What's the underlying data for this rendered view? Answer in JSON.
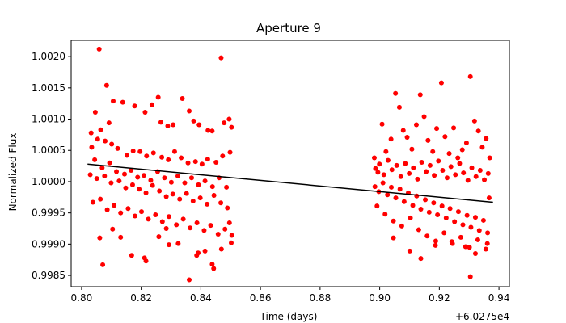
{
  "chart_data": {
    "type": "scatter",
    "title": "Aperture 9",
    "xlabel": "Time (days)",
    "ylabel": "Normalized Flux",
    "x_offset_label": "+6.0275e4",
    "xlim": [
      0.7965,
      0.9435
    ],
    "ylim": [
      0.99832,
      1.00226
    ],
    "xticks": [
      0.8,
      0.82,
      0.84,
      0.86,
      0.88,
      0.9,
      0.92,
      0.94
    ],
    "xtick_labels": [
      "0.80",
      "0.82",
      "0.84",
      "0.86",
      "0.88",
      "0.90",
      "0.92",
      "0.94"
    ],
    "yticks": [
      0.9985,
      0.999,
      0.9995,
      1.0,
      1.0005,
      1.001,
      1.0015,
      1.002
    ],
    "ytick_labels": [
      "0.9985",
      "0.9990",
      "0.9995",
      "1.0000",
      "1.0005",
      "1.0010",
      "1.0015",
      "1.0020"
    ],
    "grid": false,
    "colors": {
      "points": "#ff0000",
      "fit": "#000000",
      "axes": "#000000",
      "background": "#ffffff"
    },
    "fit_line": {
      "x": [
        0.802,
        0.938
      ],
      "y": [
        1.00028,
        0.99967
      ]
    },
    "series": [
      {
        "points": [
          [
            0.8034,
            1.00055
          ],
          [
            0.8059,
            1.00212
          ],
          [
            0.8084,
            1.00154
          ],
          [
            0.8106,
            1.00129
          ],
          [
            0.8046,
            1.00111
          ],
          [
            0.8064,
            1.00083
          ],
          [
            0.8092,
            1.00094
          ],
          [
            0.8138,
            1.00127
          ],
          [
            0.8178,
            1.00121
          ],
          [
            0.8213,
            1.00111
          ],
          [
            0.8236,
            1.00123
          ],
          [
            0.8257,
            1.00135
          ],
          [
            0.8266,
            1.00095
          ],
          [
            0.8289,
            1.00089
          ],
          [
            0.8307,
            1.00091
          ],
          [
            0.8338,
            1.00133
          ],
          [
            0.8361,
            1.00113
          ],
          [
            0.8376,
            1.00097
          ],
          [
            0.8394,
            1.00091
          ],
          [
            0.8424,
            1.00082
          ],
          [
            0.8438,
            1.00081
          ],
          [
            0.8468,
            1.00198
          ],
          [
            0.8478,
            1.00094
          ],
          [
            0.8495,
            1.001
          ],
          [
            0.8503,
            1.00087
          ],
          [
            0.8032,
            1.00078
          ],
          [
            0.8054,
            1.00068
          ],
          [
            0.8079,
            1.00065
          ],
          [
            0.8101,
            1.0006
          ],
          [
            0.8121,
            1.00053
          ],
          [
            0.8152,
            1.00042
          ],
          [
            0.8173,
            1.00049
          ],
          [
            0.8196,
            1.00048
          ],
          [
            0.8218,
            1.00041
          ],
          [
            0.8241,
            1.00046
          ],
          [
            0.8269,
            1.00039
          ],
          [
            0.8291,
            1.00035
          ],
          [
            0.8312,
            1.00048
          ],
          [
            0.8334,
            1.00038
          ],
          [
            0.8357,
            1.0003
          ],
          [
            0.8382,
            1.00032
          ],
          [
            0.8404,
            1.00028
          ],
          [
            0.8423,
            1.00036
          ],
          [
            0.8451,
            1.00031
          ],
          [
            0.8473,
            1.00041
          ],
          [
            0.8498,
            1.00047
          ],
          [
            0.8044,
            1.00035
          ],
          [
            0.8069,
            1.00022
          ],
          [
            0.8094,
            1.0003
          ],
          [
            0.8117,
            1.00016
          ],
          [
            0.8144,
            1.00012
          ],
          [
            0.8166,
            1.00018
          ],
          [
            0.8188,
            1.00007
          ],
          [
            0.8209,
            1.0001
          ],
          [
            0.8232,
            1.00002
          ],
          [
            0.8255,
            1.00016
          ],
          [
            0.8278,
            1.00006
          ],
          [
            0.8301,
            0.99999
          ],
          [
            0.8323,
            1.00009
          ],
          [
            0.8346,
            0.99998
          ],
          [
            0.8369,
            1.00006
          ],
          [
            0.8392,
            0.99995
          ],
          [
            0.8414,
            1.00001
          ],
          [
            0.8439,
            0.99992
          ],
          [
            0.8461,
            1.00006
          ],
          [
            0.8486,
            0.99991
          ],
          [
            0.8029,
            1.00011
          ],
          [
            0.8051,
            1.00005
          ],
          [
            0.8077,
            1.00009
          ],
          [
            0.8099,
            0.99998
          ],
          [
            0.8126,
            1.00001
          ],
          [
            0.8148,
            0.9999
          ],
          [
            0.8171,
            0.99995
          ],
          [
            0.8193,
            0.99988
          ],
          [
            0.8216,
            0.99982
          ],
          [
            0.8238,
            0.99994
          ],
          [
            0.8261,
            0.99985
          ],
          [
            0.8284,
            0.99976
          ],
          [
            0.8306,
            0.9998
          ],
          [
            0.8329,
            0.99972
          ],
          [
            0.8352,
            0.99981
          ],
          [
            0.8374,
            0.99969
          ],
          [
            0.8398,
            0.99974
          ],
          [
            0.8421,
            0.99964
          ],
          [
            0.8444,
            0.99978
          ],
          [
            0.8467,
            0.99966
          ],
          [
            0.8489,
            0.99958
          ],
          [
            0.8038,
            0.99967
          ],
          [
            0.8063,
            0.99972
          ],
          [
            0.8086,
            0.99955
          ],
          [
            0.8109,
            0.99962
          ],
          [
            0.8131,
            0.9995
          ],
          [
            0.8156,
            0.99957
          ],
          [
            0.8179,
            0.99945
          ],
          [
            0.8201,
            0.99952
          ],
          [
            0.8224,
            0.9994
          ],
          [
            0.8248,
            0.99947
          ],
          [
            0.8271,
            0.99936
          ],
          [
            0.8293,
            0.99944
          ],
          [
            0.8318,
            0.99931
          ],
          [
            0.8341,
            0.9994
          ],
          [
            0.8364,
            0.99926
          ],
          [
            0.8387,
            0.99934
          ],
          [
            0.8411,
            0.99922
          ],
          [
            0.8433,
            0.9993
          ],
          [
            0.8458,
            0.99916
          ],
          [
            0.8481,
            0.99924
          ],
          [
            0.8504,
            0.99914
          ],
          [
            0.8061,
            0.9991
          ],
          [
            0.8104,
            0.99924
          ],
          [
            0.8168,
            0.99882
          ],
          [
            0.8211,
            0.99878
          ],
          [
            0.8259,
            0.99912
          ],
          [
            0.8293,
            0.99899
          ],
          [
            0.8324,
            0.99901
          ],
          [
            0.8361,
            0.99843
          ],
          [
            0.8386,
            0.99882
          ],
          [
            0.8414,
            0.99889
          ],
          [
            0.8438,
            0.99868
          ],
          [
            0.8469,
            0.99892
          ],
          [
            0.8502,
            0.99902
          ],
          [
            0.8071,
            0.99867
          ],
          [
            0.8216,
            0.99873
          ],
          [
            0.8391,
            0.99886
          ],
          [
            0.8443,
            0.99861
          ],
          [
            0.8496,
            0.99934
          ],
          [
            0.8131,
            0.99911
          ],
          [
            0.8284,
            0.99925
          ],
          [
            0.8982,
            1.00038
          ],
          [
            0.8994,
            1.00015
          ],
          [
            0.9008,
            1.00092
          ],
          [
            0.9021,
            1.00048
          ],
          [
            0.9038,
            1.00068
          ],
          [
            0.9053,
            1.00141
          ],
          [
            0.9066,
            1.00119
          ],
          [
            0.9079,
            1.00082
          ],
          [
            0.9092,
            1.00071
          ],
          [
            0.9108,
            1.00052
          ],
          [
            0.9123,
            1.00091
          ],
          [
            0.9136,
            1.00139
          ],
          [
            0.9149,
            1.00104
          ],
          [
            0.9162,
            1.00066
          ],
          [
            0.9178,
            1.00048
          ],
          [
            0.9191,
            1.00085
          ],
          [
            0.9207,
            1.00158
          ],
          [
            0.9219,
            1.00072
          ],
          [
            0.9233,
            1.00045
          ],
          [
            0.9248,
            1.00086
          ],
          [
            0.9262,
            1.00038
          ],
          [
            0.9277,
            1.00051
          ],
          [
            0.9291,
            1.00062
          ],
          [
            0.9304,
            1.00168
          ],
          [
            0.9318,
            1.00097
          ],
          [
            0.9331,
            1.00081
          ],
          [
            0.9344,
            1.00055
          ],
          [
            0.9357,
            1.00069
          ],
          [
            0.9369,
            1.00038
          ],
          [
            0.8986,
            1.00021
          ],
          [
            0.8999,
            1.00028
          ],
          [
            0.9014,
            1.00011
          ],
          [
            0.9028,
            1.00034
          ],
          [
            0.9041,
            1.00019
          ],
          [
            0.9057,
            1.00026
          ],
          [
            0.9071,
            1.00008
          ],
          [
            0.9086,
            1.00029
          ],
          [
            0.9099,
            1.00013
          ],
          [
            0.9113,
            1.00022
          ],
          [
            0.9127,
            1.00004
          ],
          [
            0.9141,
            1.00031
          ],
          [
            0.9156,
            1.00016
          ],
          [
            0.9169,
            1.00026
          ],
          [
            0.9183,
            1.0001
          ],
          [
            0.9197,
            1.00033
          ],
          [
            0.9211,
            1.00018
          ],
          [
            0.9226,
            1.00006
          ],
          [
            0.9239,
            1.00024
          ],
          [
            0.9254,
            1.00011
          ],
          [
            0.9268,
            1.00029
          ],
          [
            0.9281,
            1.00014
          ],
          [
            0.9296,
            1.00002
          ],
          [
            0.9309,
            1.00022
          ],
          [
            0.9323,
            1.00008
          ],
          [
            0.9337,
            1.00018
          ],
          [
            0.9351,
            1.00003
          ],
          [
            0.9364,
            1.00013
          ],
          [
            0.8984,
            0.99992
          ],
          [
            0.8997,
            0.99984
          ],
          [
            0.9011,
            0.99998
          ],
          [
            0.9026,
            0.99979
          ],
          [
            0.9039,
            0.99991
          ],
          [
            0.9054,
            0.99974
          ],
          [
            0.9068,
            0.99988
          ],
          [
            0.9082,
            0.99968
          ],
          [
            0.9096,
            0.99982
          ],
          [
            0.9111,
            0.99962
          ],
          [
            0.9124,
            0.99977
          ],
          [
            0.9138,
            0.99956
          ],
          [
            0.9153,
            0.99971
          ],
          [
            0.9166,
            0.99951
          ],
          [
            0.9181,
            0.99966
          ],
          [
            0.9194,
            0.99947
          ],
          [
            0.9209,
            0.99961
          ],
          [
            0.9223,
            0.99942
          ],
          [
            0.9236,
            0.99957
          ],
          [
            0.9251,
            0.99936
          ],
          [
            0.9264,
            0.99952
          ],
          [
            0.9279,
            0.99931
          ],
          [
            0.9293,
            0.99946
          ],
          [
            0.9306,
            0.99927
          ],
          [
            0.9321,
            0.99943
          ],
          [
            0.9334,
            0.99922
          ],
          [
            0.9348,
            0.99938
          ],
          [
            0.9362,
            0.99918
          ],
          [
            0.9367,
            0.99974
          ],
          [
            0.8991,
            0.99961
          ],
          [
            0.9018,
            0.99948
          ],
          [
            0.9046,
            0.99937
          ],
          [
            0.9074,
            0.99929
          ],
          [
            0.9103,
            0.99942
          ],
          [
            0.9131,
            0.99923
          ],
          [
            0.9159,
            0.99913
          ],
          [
            0.9188,
            0.99905
          ],
          [
            0.9216,
            0.99918
          ],
          [
            0.9244,
            0.99901
          ],
          [
            0.9272,
            0.99911
          ],
          [
            0.9301,
            0.99895
          ],
          [
            0.9329,
            0.99907
          ],
          [
            0.9356,
            0.99892
          ],
          [
            0.9046,
            0.9991
          ],
          [
            0.9101,
            0.99889
          ],
          [
            0.9138,
            0.99877
          ],
          [
            0.9187,
            0.99898
          ],
          [
            0.9242,
            0.99904
          ],
          [
            0.9288,
            0.99896
          ],
          [
            0.9321,
            0.99885
          ],
          [
            0.9304,
            0.99848
          ],
          [
            0.9361,
            0.99901
          ]
        ]
      }
    ]
  }
}
